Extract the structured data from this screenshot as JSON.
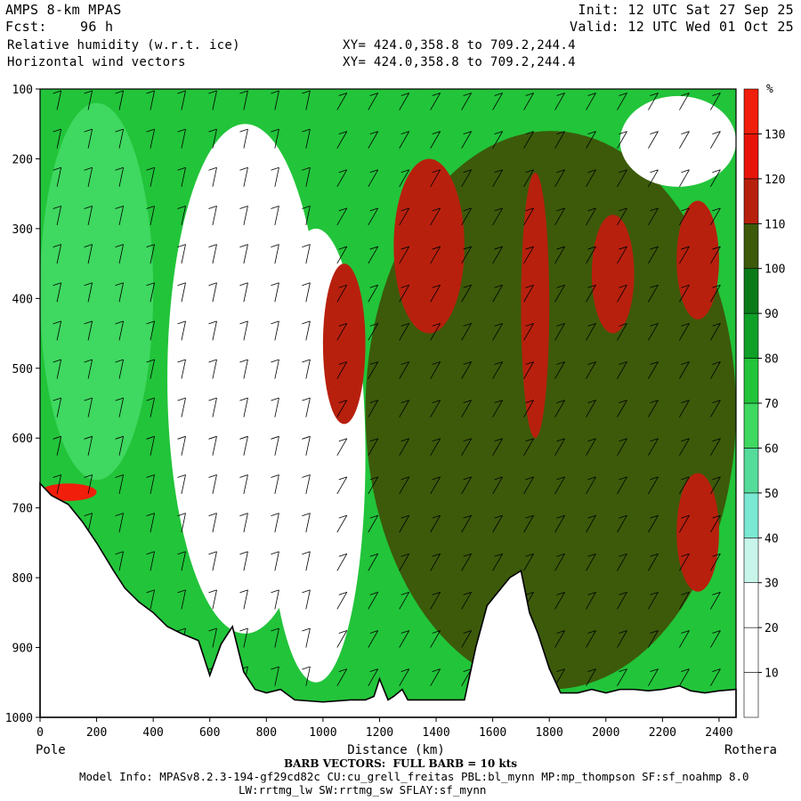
{
  "header": {
    "model": "AMPS 8-km MPAS",
    "fcst_label": "Fcst:",
    "fcst_value": "96 h",
    "field1": "Relative humidity (w.r.t. ice)",
    "field2": "Horizontal wind vectors",
    "init_label": "Init:",
    "init_value": "12 UTC Sat 27 Sep 25",
    "valid_label": "Valid:",
    "valid_value": "12 UTC Wed 01 Oct 25",
    "xy1": "XY= 424.0,358.8 to 709.2,244.4",
    "xy2": "XY= 424.0,358.8 to 709.2,244.4"
  },
  "footer": {
    "barb": "BARB VECTORS:  FULL BARB = 10 kts",
    "model_info": "Model Info: MPASv8.2.3-194-gf29cd82c CU:cu_grell_freitas PBL:bl_mynn MP:mp_thompson SF:sf_noahmp 8.0",
    "model_info2": "LW:rrtmg_lw SW:rrtmg_sw SFLAY:sf_mynn"
  },
  "colorbar": {
    "unit": "%",
    "levels": [
      10,
      20,
      30,
      40,
      50,
      60,
      70,
      80,
      90,
      100,
      110,
      120,
      130
    ],
    "colors": [
      "#ffffff",
      "#ffffff",
      "#ffffff",
      "#c8f5ea",
      "#7ae8d2",
      "#55dc9a",
      "#3fd860",
      "#22c43a",
      "#10a028",
      "#0a7a18",
      "#3c5a0a",
      "#b8200e",
      "#e8140a",
      "#f01e0a"
    ]
  },
  "chart_data": {
    "type": "heatmap",
    "title": "Relative humidity (w.r.t. ice)",
    "xlabel": "Distance (km)",
    "ylabel": "",
    "x_ticks": [
      0,
      200,
      400,
      600,
      800,
      1000,
      1200,
      1400,
      1600,
      1800,
      2000,
      2200,
      2400
    ],
    "y_ticks": [
      100,
      200,
      300,
      400,
      500,
      600,
      700,
      800,
      900,
      1000
    ],
    "xlim": [
      0,
      2460
    ],
    "ylim": [
      100,
      1000
    ],
    "y_axis_inverted": true,
    "endpoint_left": "Pole",
    "endpoint_right": "Rothera",
    "terrain_pressure_hpa": [
      [
        0,
        665
      ],
      [
        40,
        682
      ],
      [
        100,
        695
      ],
      [
        150,
        720
      ],
      [
        200,
        750
      ],
      [
        260,
        790
      ],
      [
        300,
        815
      ],
      [
        350,
        835
      ],
      [
        400,
        850
      ],
      [
        450,
        870
      ],
      [
        500,
        880
      ],
      [
        560,
        890
      ],
      [
        600,
        940
      ],
      [
        640,
        895
      ],
      [
        680,
        870
      ],
      [
        720,
        935
      ],
      [
        760,
        960
      ],
      [
        800,
        965
      ],
      [
        850,
        960
      ],
      [
        900,
        975
      ],
      [
        1000,
        978
      ],
      [
        1100,
        975
      ],
      [
        1150,
        975
      ],
      [
        1180,
        970
      ],
      [
        1200,
        945
      ],
      [
        1230,
        975
      ],
      [
        1250,
        970
      ],
      [
        1280,
        960
      ],
      [
        1300,
        975
      ],
      [
        1400,
        975
      ],
      [
        1500,
        975
      ],
      [
        1540,
        900
      ],
      [
        1580,
        840
      ],
      [
        1620,
        820
      ],
      [
        1660,
        800
      ],
      [
        1700,
        790
      ],
      [
        1730,
        850
      ],
      [
        1760,
        880
      ],
      [
        1800,
        930
      ],
      [
        1840,
        965
      ],
      [
        1900,
        965
      ],
      [
        1950,
        960
      ],
      [
        2000,
        965
      ],
      [
        2050,
        960
      ],
      [
        2100,
        960
      ],
      [
        2150,
        962
      ],
      [
        2200,
        960
      ],
      [
        2260,
        955
      ],
      [
        2300,
        962
      ],
      [
        2350,
        965
      ],
      [
        2400,
        962
      ],
      [
        2460,
        960
      ]
    ],
    "rh_regions": [
      {
        "x": [
          0,
          400
        ],
        "p": [
          120,
          660
        ],
        "rh": 60
      },
      {
        "x": [
          450,
          1000
        ],
        "p": [
          150,
          880
        ],
        "rh": 20
      },
      {
        "x": [
          800,
          1150
        ],
        "p": [
          300,
          950
        ],
        "rh": 20
      },
      {
        "x": [
          1000,
          1150
        ],
        "p": [
          350,
          580
        ],
        "rh": 115
      },
      {
        "x": [
          1150,
          2460
        ],
        "p": [
          160,
          960
        ],
        "rh": 105
      },
      {
        "x": [
          1250,
          1500
        ],
        "p": [
          200,
          450
        ],
        "rh": 118
      },
      {
        "x": [
          1700,
          1800
        ],
        "p": [
          220,
          600
        ],
        "rh": 118
      },
      {
        "x": [
          1950,
          2100
        ],
        "p": [
          280,
          450
        ],
        "rh": 115
      },
      {
        "x": [
          2250,
          2400
        ],
        "p": [
          260,
          430
        ],
        "rh": 115
      },
      {
        "x": [
          2250,
          2400
        ],
        "p": [
          650,
          820
        ],
        "rh": 118
      },
      {
        "x": [
          2050,
          2460
        ],
        "p": [
          110,
          240
        ],
        "rh": 20
      },
      {
        "x": [
          0,
          200
        ],
        "p": [
          665,
          690
        ],
        "rh": 130
      }
    ]
  }
}
